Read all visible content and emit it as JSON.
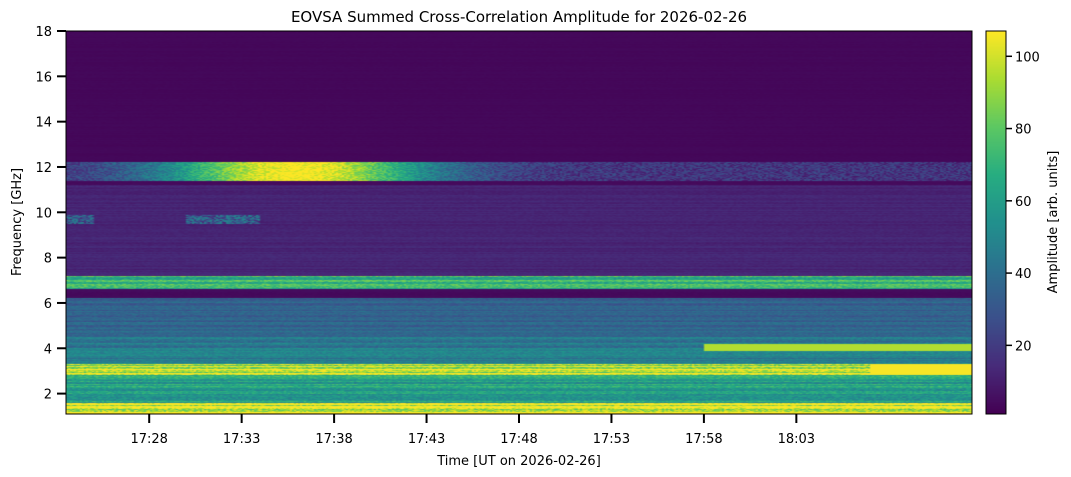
{
  "chart_data": {
    "type": "heatmap",
    "title": "EOVSA Summed Cross-Correlation Amplitude for 2026-02-26",
    "xlabel": "Time [UT on 2026-02-26]",
    "ylabel": "Frequency [GHz]",
    "colorbar_label": "Amplitude [arb. units]",
    "colormap": "viridis",
    "x_range_ut": [
      "17:23:30",
      "18:12:30"
    ],
    "xlim_minutes_after_1700": [
      23.5,
      72.5
    ],
    "x_ticks": [
      "17:28",
      "17:33",
      "17:38",
      "17:43",
      "17:48",
      "17:53",
      "17:58",
      "18:03"
    ],
    "x_tick_values_minutes_after_1700": [
      28,
      33,
      38,
      43,
      48,
      53,
      58,
      63
    ],
    "ylim": [
      1.1,
      18
    ],
    "y_ticks": [
      "2",
      "4",
      "6",
      "8",
      "10",
      "12",
      "14",
      "16",
      "18"
    ],
    "y_tick_values": [
      2,
      4,
      6,
      8,
      10,
      12,
      14,
      16,
      18
    ],
    "clim": [
      1,
      107
    ],
    "colorbar_ticks": [
      "20",
      "40",
      "60",
      "80",
      "100"
    ],
    "colorbar_tick_values": [
      20,
      40,
      60,
      80,
      100
    ],
    "approx_band_features": [
      {
        "freq_ghz": [
          1.1,
          1.6
        ],
        "amplitude": 105,
        "note": "saturated band"
      },
      {
        "freq_ghz": [
          1.6,
          2.8
        ],
        "amplitude": 62
      },
      {
        "freq_ghz": [
          2.8,
          3.3
        ],
        "amplitude": 100
      },
      {
        "freq_ghz": [
          3.3,
          4.5
        ],
        "amplitude": 45
      },
      {
        "freq_ghz": [
          4.5,
          6.2
        ],
        "amplitude": 35
      },
      {
        "freq_ghz": [
          6.6,
          7.2
        ],
        "amplitude": 70,
        "note": "narrow bright lines"
      },
      {
        "freq_ghz": [
          7.2,
          11.2
        ],
        "amplitude": 12
      },
      {
        "freq_ghz": [
          11.4,
          12.2
        ],
        "amplitude": 85,
        "note": "bright near 17:30-17:42"
      },
      {
        "freq_ghz": [
          12.2,
          18.0
        ],
        "amplitude": 3
      }
    ],
    "colors": {
      "viridis_low": "#440154",
      "viridis_mid": "#21918c",
      "viridis_high": "#fde725"
    }
  }
}
